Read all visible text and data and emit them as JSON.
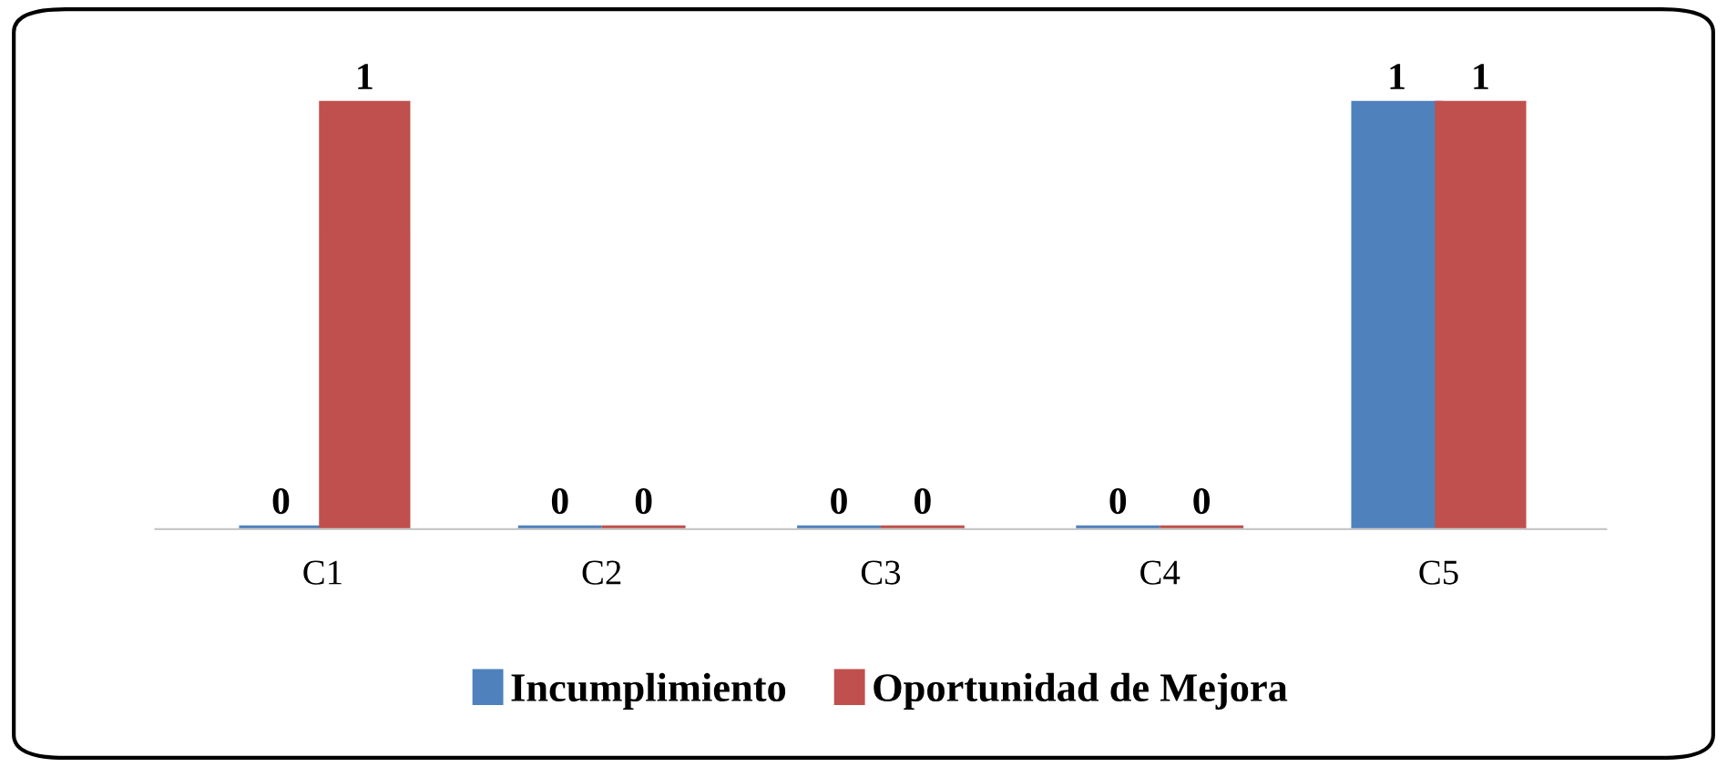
{
  "chart_data": {
    "type": "bar",
    "categories": [
      "C1",
      "C2",
      "C3",
      "C4",
      "C5"
    ],
    "series": [
      {
        "name": "Incumplimiento",
        "color": "#4f81bd",
        "values": [
          0,
          0,
          0,
          0,
          1
        ]
      },
      {
        "name": "Oportunidad de Mejora",
        "color": "#c0504d",
        "values": [
          1,
          0,
          0,
          0,
          1
        ]
      }
    ],
    "data_labels": true,
    "legend": "bottom",
    "grid": false
  }
}
